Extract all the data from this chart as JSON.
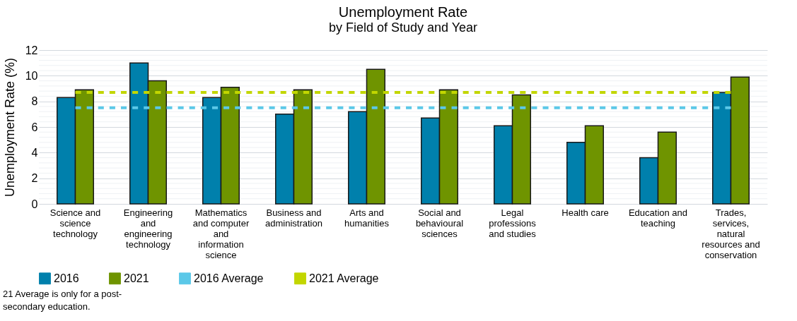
{
  "chart_data": {
    "type": "bar",
    "title": "Unemployment Rate",
    "subtitle": "by Field of Study and Year",
    "ylabel": "Unemployment Rate (%)",
    "categories": [
      "Science and science technology",
      "Engineering and engineering technology",
      "Mathematics and computer and information science",
      "Business and administration",
      "Arts and humanities",
      "Social and behavioural sciences",
      "Legal professions and studies",
      "Health care",
      "Education and teaching",
      "Trades, services, natural resources and conservation"
    ],
    "series": [
      {
        "name": "2016",
        "color": "#0080ac",
        "values": [
          8.3,
          11.0,
          8.3,
          7.0,
          7.2,
          6.7,
          6.1,
          4.8,
          3.6,
          8.7
        ]
      },
      {
        "name": "2021",
        "color": "#6f9400",
        "values": [
          8.9,
          9.6,
          9.1,
          8.9,
          10.5,
          8.9,
          8.5,
          6.1,
          5.6,
          9.9
        ]
      },
      {
        "name": "2016 Average",
        "type": "line",
        "line_style": "dashed",
        "color": "#5bc8e8",
        "values": [
          7.5,
          7.5,
          7.5,
          7.5,
          7.5,
          7.5,
          7.5,
          7.5,
          7.5,
          7.5
        ]
      },
      {
        "name": "2021 Average",
        "type": "line",
        "line_style": "dashed",
        "color": "#c2d600",
        "values": [
          8.7,
          8.7,
          8.7,
          8.7,
          8.7,
          8.7,
          8.7,
          8.7,
          8.7,
          8.7
        ]
      }
    ],
    "ylim": [
      0,
      12
    ],
    "yticks": [
      0,
      2,
      4,
      6,
      8,
      10,
      12
    ],
    "grid": true,
    "legend": "bottom",
    "annotations": [
      "21 Average is only for a post-secondary education."
    ]
  }
}
